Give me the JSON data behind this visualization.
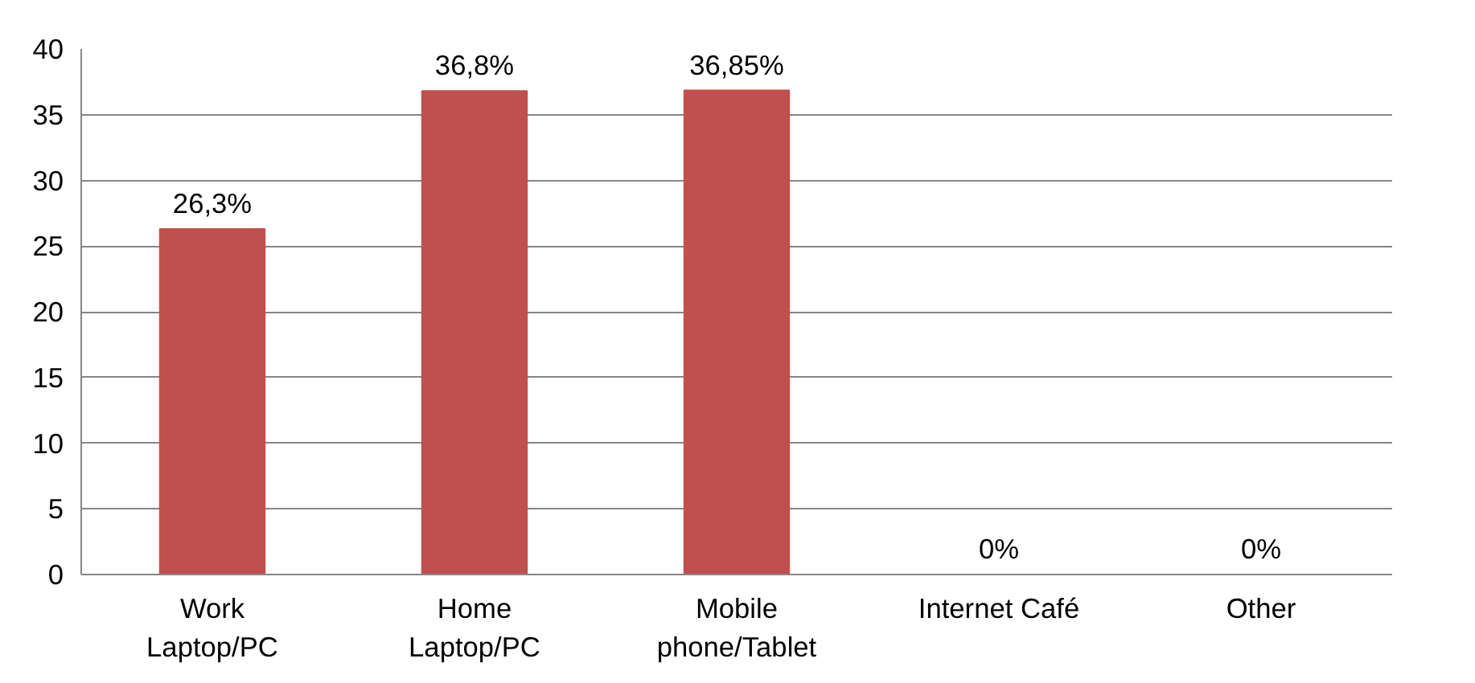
{
  "chart_data": {
    "type": "bar",
    "categories": [
      "Work Laptop/PC",
      "Home Laptop/PC",
      "Mobile phone/Tablet",
      "Internet Café",
      "Other"
    ],
    "values": [
      26.3,
      36.8,
      36.85,
      0,
      0
    ],
    "value_labels": [
      "26,3%",
      "36,8%",
      "36,85%",
      "0%",
      "0%"
    ],
    "color": "#c0504d",
    "ylim": [
      0,
      40
    ],
    "yticks": [
      0,
      5,
      10,
      15,
      20,
      25,
      30,
      35,
      40
    ],
    "grid": "y"
  }
}
